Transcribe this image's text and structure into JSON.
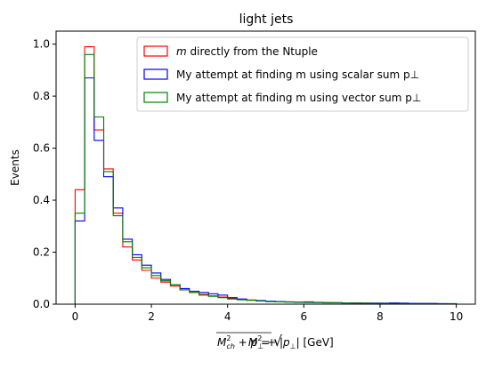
{
  "chart_data": {
    "type": "step-histogram",
    "title": "light jets",
    "xlabel": "M = √(M²ch + p²⊥) + |p⊥| [GeV]",
    "ylabel": "Events",
    "xlim": [
      -0.5,
      10.5
    ],
    "ylim": [
      0.0,
      1.05
    ],
    "xticks": [
      0,
      2,
      4,
      6,
      8,
      10
    ],
    "yticks": [
      0.0,
      0.2,
      0.4,
      0.6,
      0.8,
      1.0
    ],
    "legend_position": "top-right",
    "bin_width": 0.25,
    "bin_start": 0.0,
    "series": [
      {
        "name": "directly from the Ntuple",
        "name_prefix": "m",
        "color": "#ff0000",
        "values": [
          0.44,
          0.99,
          0.67,
          0.52,
          0.35,
          0.22,
          0.17,
          0.13,
          0.1,
          0.085,
          0.07,
          0.055,
          0.045,
          0.038,
          0.032,
          0.027,
          0.022,
          0.018,
          0.015,
          0.013,
          0.011,
          0.01,
          0.009,
          0.008,
          0.007,
          0.0065,
          0.006,
          0.0055,
          0.005,
          0.0045,
          0.004,
          0.0035,
          0.003,
          0.003,
          0.0025,
          0.0025,
          0.002,
          0.002,
          0.0018,
          0.0015
        ]
      },
      {
        "name": "My attempt at finding m using scalar sum p⊥",
        "color": "#0000ff",
        "values": [
          0.32,
          0.87,
          0.63,
          0.49,
          0.37,
          0.25,
          0.19,
          0.15,
          0.12,
          0.095,
          0.075,
          0.06,
          0.05,
          0.045,
          0.04,
          0.035,
          0.025,
          0.02,
          0.016,
          0.014,
          0.012,
          0.01,
          0.009,
          0.008,
          0.009,
          0.007,
          0.006,
          0.006,
          0.005,
          0.005,
          0.004,
          0.004,
          0.004,
          0.005,
          0.004,
          0.003,
          0.003,
          0.003,
          0.002,
          0.002
        ]
      },
      {
        "name": "My attempt at finding m using vector sum p⊥",
        "color": "#008000",
        "values": [
          0.35,
          0.96,
          0.72,
          0.51,
          0.34,
          0.24,
          0.18,
          0.14,
          0.11,
          0.09,
          0.075,
          0.055,
          0.045,
          0.035,
          0.03,
          0.025,
          0.02,
          0.017,
          0.015,
          0.012,
          0.01,
          0.009,
          0.008,
          0.007,
          0.0065,
          0.006,
          0.005,
          0.005,
          0.0045,
          0.004,
          0.0035,
          0.003,
          0.003,
          0.003,
          0.0025,
          0.002,
          0.002,
          0.002,
          0.0015,
          0.0015
        ]
      }
    ]
  }
}
